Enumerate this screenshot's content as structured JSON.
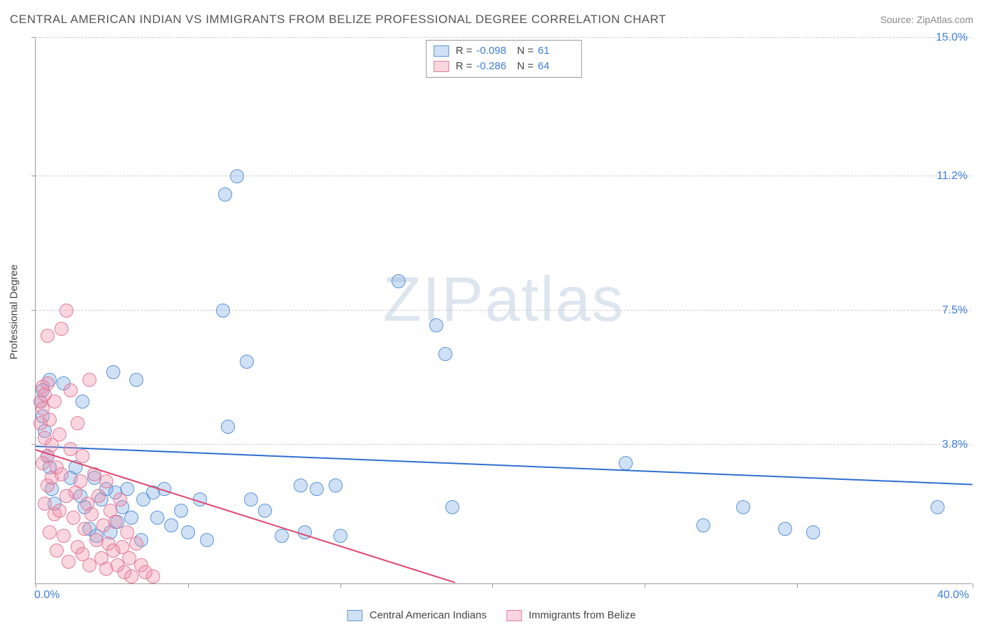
{
  "title": "CENTRAL AMERICAN INDIAN VS IMMIGRANTS FROM BELIZE PROFESSIONAL DEGREE CORRELATION CHART",
  "source_prefix": "Source: ",
  "source_name": "ZipAtlas.com",
  "y_axis_title": "Professional Degree",
  "watermark": "ZIPatlas",
  "chart": {
    "type": "scatter",
    "background_color": "#ffffff",
    "grid_color": "#cccccc",
    "axis_color": "#999999",
    "xlim": [
      0,
      40
    ],
    "ylim": [
      0,
      15
    ],
    "x_label_min": "0.0%",
    "x_label_max": "40.0%",
    "y_ticks": [
      3.8,
      7.5,
      11.2,
      15.0
    ],
    "y_tick_labels": [
      "3.8%",
      "7.5%",
      "11.2%",
      "15.0%"
    ],
    "x_tick_positions": [
      0,
      6.5,
      13,
      19.5,
      26,
      32.5,
      40
    ],
    "tick_label_color": "#3b7dd8",
    "tick_label_fontsize": 16
  },
  "series": [
    {
      "id": "cai",
      "name": "Central American Indians",
      "fill": "rgba(120,170,230,0.35)",
      "stroke": "#5a94d6",
      "marker_size": 10,
      "trend": {
        "y_at_x0": 3.75,
        "y_at_xmax": 2.7,
        "color": "#2d6fd0",
        "width": 2.5
      },
      "R": "-0.098",
      "N": "61",
      "points": [
        [
          0.2,
          5.0
        ],
        [
          0.3,
          5.3
        ],
        [
          0.3,
          4.6
        ],
        [
          0.4,
          4.2
        ],
        [
          0.5,
          3.5
        ],
        [
          0.6,
          5.6
        ],
        [
          0.6,
          3.2
        ],
        [
          0.7,
          2.6
        ],
        [
          0.8,
          2.2
        ],
        [
          1.2,
          5.5
        ],
        [
          1.5,
          2.9
        ],
        [
          1.7,
          3.2
        ],
        [
          1.9,
          2.4
        ],
        [
          2.0,
          5.0
        ],
        [
          2.1,
          2.1
        ],
        [
          2.3,
          1.5
        ],
        [
          2.5,
          2.9
        ],
        [
          2.6,
          1.3
        ],
        [
          2.8,
          2.3
        ],
        [
          3.0,
          2.6
        ],
        [
          3.2,
          1.4
        ],
        [
          3.3,
          5.8
        ],
        [
          3.4,
          2.5
        ],
        [
          3.5,
          1.7
        ],
        [
          3.7,
          2.1
        ],
        [
          3.9,
          2.6
        ],
        [
          4.1,
          1.8
        ],
        [
          4.3,
          5.6
        ],
        [
          4.5,
          1.2
        ],
        [
          4.6,
          2.3
        ],
        [
          5.0,
          2.5
        ],
        [
          5.2,
          1.8
        ],
        [
          5.5,
          2.6
        ],
        [
          5.8,
          1.6
        ],
        [
          6.2,
          2.0
        ],
        [
          6.5,
          1.4
        ],
        [
          7.0,
          2.3
        ],
        [
          7.3,
          1.2
        ],
        [
          8.0,
          7.5
        ],
        [
          8.1,
          10.7
        ],
        [
          8.2,
          4.3
        ],
        [
          8.6,
          11.2
        ],
        [
          9.0,
          6.1
        ],
        [
          9.2,
          2.3
        ],
        [
          9.8,
          2.0
        ],
        [
          10.5,
          1.3
        ],
        [
          11.3,
          2.7
        ],
        [
          11.5,
          1.4
        ],
        [
          12.0,
          2.6
        ],
        [
          12.8,
          2.7
        ],
        [
          13.0,
          1.3
        ],
        [
          15.5,
          8.3
        ],
        [
          17.1,
          7.1
        ],
        [
          17.5,
          6.3
        ],
        [
          17.8,
          2.1
        ],
        [
          25.2,
          3.3
        ],
        [
          28.5,
          1.6
        ],
        [
          30.2,
          2.1
        ],
        [
          32.0,
          1.5
        ],
        [
          33.2,
          1.4
        ],
        [
          38.5,
          2.1
        ]
      ]
    },
    {
      "id": "belize",
      "name": "Immigrants from Belize",
      "fill": "rgba(240,140,165,0.35)",
      "stroke": "#e17a9a",
      "marker_size": 10,
      "trend": {
        "y_at_x0": 3.65,
        "y_at_xmax": -4.5,
        "color": "#e0456f",
        "width": 2
      },
      "R": "-0.286",
      "N": "64",
      "points": [
        [
          0.2,
          5.0
        ],
        [
          0.2,
          4.4
        ],
        [
          0.3,
          5.4
        ],
        [
          0.3,
          4.8
        ],
        [
          0.3,
          3.3
        ],
        [
          0.4,
          5.2
        ],
        [
          0.4,
          4.0
        ],
        [
          0.4,
          2.2
        ],
        [
          0.5,
          6.8
        ],
        [
          0.5,
          5.5
        ],
        [
          0.5,
          3.5
        ],
        [
          0.5,
          2.7
        ],
        [
          0.6,
          4.5
        ],
        [
          0.6,
          1.4
        ],
        [
          0.7,
          3.8
        ],
        [
          0.7,
          2.9
        ],
        [
          0.8,
          5.0
        ],
        [
          0.8,
          1.9
        ],
        [
          0.9,
          3.2
        ],
        [
          0.9,
          0.9
        ],
        [
          1.0,
          4.1
        ],
        [
          1.0,
          2.0
        ],
        [
          1.1,
          7.0
        ],
        [
          1.1,
          3.0
        ],
        [
          1.2,
          1.3
        ],
        [
          1.3,
          2.4
        ],
        [
          1.3,
          7.5
        ],
        [
          1.4,
          0.6
        ],
        [
          1.5,
          3.7
        ],
        [
          1.5,
          5.3
        ],
        [
          1.6,
          1.8
        ],
        [
          1.7,
          2.5
        ],
        [
          1.8,
          4.4
        ],
        [
          1.8,
          1.0
        ],
        [
          1.9,
          2.8
        ],
        [
          2.0,
          0.8
        ],
        [
          2.0,
          3.5
        ],
        [
          2.1,
          1.5
        ],
        [
          2.2,
          2.2
        ],
        [
          2.3,
          5.6
        ],
        [
          2.3,
          0.5
        ],
        [
          2.4,
          1.9
        ],
        [
          2.5,
          3.0
        ],
        [
          2.6,
          1.2
        ],
        [
          2.7,
          2.4
        ],
        [
          2.8,
          0.7
        ],
        [
          2.9,
          1.6
        ],
        [
          3.0,
          2.8
        ],
        [
          3.0,
          0.4
        ],
        [
          3.1,
          1.1
        ],
        [
          3.2,
          2.0
        ],
        [
          3.3,
          0.9
        ],
        [
          3.4,
          1.7
        ],
        [
          3.5,
          0.5
        ],
        [
          3.6,
          2.3
        ],
        [
          3.7,
          1.0
        ],
        [
          3.8,
          0.3
        ],
        [
          3.9,
          1.4
        ],
        [
          4.0,
          0.7
        ],
        [
          4.1,
          0.2
        ],
        [
          4.3,
          1.1
        ],
        [
          4.5,
          0.5
        ],
        [
          4.7,
          0.3
        ],
        [
          5.0,
          0.2
        ]
      ]
    }
  ],
  "stats_box": {
    "R_label": "R =",
    "N_label": "N ="
  },
  "legend_items": [
    {
      "series": "cai"
    },
    {
      "series": "belize"
    }
  ]
}
